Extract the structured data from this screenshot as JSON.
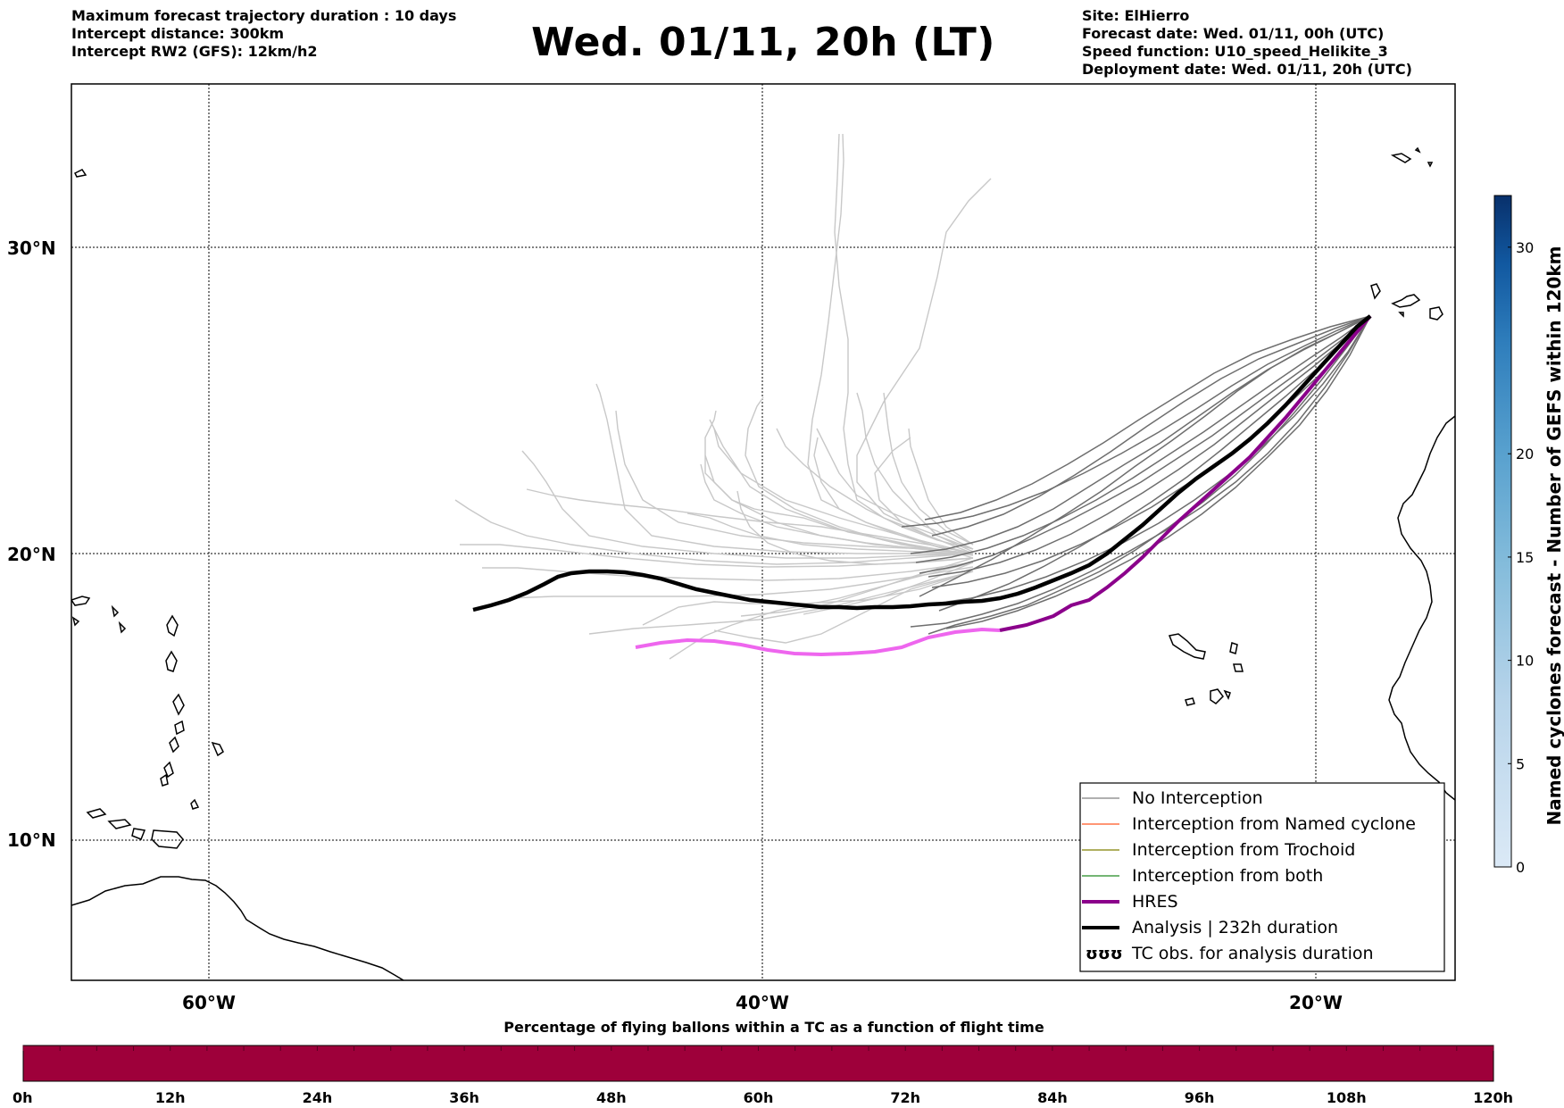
{
  "header": {
    "left_lines": [
      "Maximum forecast trajectory duration : 10 days",
      "Intercept distance: 300km",
      "Intercept RW2 (GFS):  12km/h2"
    ],
    "title": "Wed. 01/11, 20h (LT)",
    "right_lines": [
      "Site: ElHierro",
      "Forecast date: Wed. 01/11, 00h (UTC)",
      "Speed function: U10_speed_Helikite_3",
      "Deployment date: Wed. 01/11, 20h (UTC)"
    ]
  },
  "map": {
    "lon_labels": [
      "60°W",
      "40°W",
      "20°W"
    ],
    "lat_labels": [
      "30°N",
      "20°N",
      "10°N"
    ]
  },
  "legend": {
    "items": [
      {
        "label": "No Interception",
        "color": "#808080",
        "style": "thin"
      },
      {
        "label": "Interception from Named cyclone",
        "color": "#ff5722",
        "style": "thin"
      },
      {
        "label": "Interception from Trochoid",
        "color": "#808000",
        "style": "thin"
      },
      {
        "label": "Interception from both",
        "color": "#228b22",
        "style": "thin"
      },
      {
        "label": "HRES",
        "color": "#8b008b",
        "style": "thick"
      },
      {
        "label": "Analysis | 232h duration",
        "color": "#000000",
        "style": "thick"
      },
      {
        "label": "TC obs. for analysis duration",
        "color": "#000000",
        "style": "glyph",
        "glyph": "ʊʊʊ"
      }
    ]
  },
  "colorbar": {
    "label": "Named cyclones forecast - Number of GEFS within 120km",
    "ticks": [
      "0",
      "5",
      "10",
      "15",
      "20",
      "30"
    ],
    "colors": [
      "#dbe9f6",
      "#c6dbef",
      "#9ecae1",
      "#6baed6",
      "#4292c6",
      "#2171b5",
      "#08519c",
      "#08306b"
    ]
  },
  "timebar": {
    "title": "Percentage of flying ballons within a TC as a function of flight time",
    "labels": [
      "0h",
      "12h",
      "24h",
      "36h",
      "48h",
      "60h",
      "72h",
      "84h",
      "96h",
      "108h",
      "120h"
    ],
    "color": "#9e003a"
  }
}
